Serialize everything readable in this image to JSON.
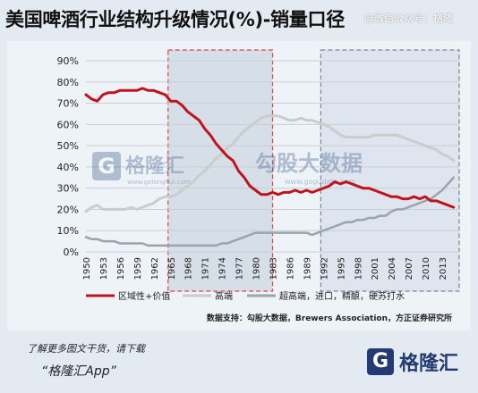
{
  "header": {
    "title": "美国啤酒行业结构升级情况(%)-销量口径",
    "watermark": "@微信公众号：格隆"
  },
  "brand": {
    "wm_left_glyph": "G",
    "wm_left_name": "格隆汇",
    "wm_left_url": "www.gelonghui.com",
    "wm_right_name": "勾股大数据",
    "wm_right_url": "www.gogudata.com"
  },
  "legend": {
    "s1": "区域性+价值",
    "s2": "高端",
    "s3": "超高端，进口，精酿，硬苏打水"
  },
  "source": "数据支持：勾股大数据，Brewers Association，方正证券研究所",
  "promo": {
    "line1": "了解更多图文干货，请下载",
    "line2": "“格隆汇App”",
    "logo_glyph": "G",
    "logo_name": "格隆汇"
  },
  "colors": {
    "s1": "#c0141d",
    "s2": "#cccccc",
    "s3": "#9aa4ad",
    "grid": "#c6cfd8",
    "band": "#cdd8e3",
    "bandBorder1": "#e0453f",
    "bandBorder2": "#7a8796"
  },
  "chart_data": {
    "type": "line",
    "title": "美国啤酒行业结构升级情况(%)-销量口径",
    "ylim": [
      0,
      90
    ],
    "yticks": [
      0,
      10,
      20,
      30,
      40,
      50,
      60,
      70,
      80,
      90
    ],
    "ytick_labels": [
      "0%",
      "10%",
      "20%",
      "30%",
      "40%",
      "50%",
      "60%",
      "70%",
      "80%",
      "90%"
    ],
    "xlim": [
      1950,
      2016
    ],
    "xticks": [
      1950,
      1953,
      1956,
      1959,
      1962,
      1965,
      1968,
      1971,
      1974,
      1977,
      1980,
      1983,
      1986,
      1989,
      1992,
      1995,
      1998,
      2001,
      2004,
      2007,
      2010,
      2013
    ],
    "grid": true,
    "highlight_ranges": [
      [
        1965,
        1983
      ],
      [
        1992,
        2016
      ]
    ],
    "legend_position": "bottom",
    "series": [
      {
        "name": "区域性+价值",
        "x": [
          1950,
          1951,
          1952,
          1953,
          1954,
          1955,
          1956,
          1957,
          1958,
          1959,
          1960,
          1961,
          1962,
          1963,
          1964,
          1965,
          1966,
          1967,
          1968,
          1969,
          1970,
          1971,
          1972,
          1973,
          1974,
          1975,
          1976,
          1977,
          1978,
          1979,
          1980,
          1981,
          1982,
          1983,
          1984,
          1985,
          1986,
          1987,
          1988,
          1989,
          1990,
          1991,
          1992,
          1993,
          1994,
          1995,
          1996,
          1997,
          1998,
          1999,
          2000,
          2001,
          2002,
          2003,
          2004,
          2005,
          2006,
          2007,
          2008,
          2009,
          2010,
          2011,
          2012,
          2013,
          2014,
          2015
        ],
        "values": [
          74,
          72,
          71,
          74,
          75,
          75,
          76,
          76,
          76,
          76,
          77,
          76,
          76,
          75,
          74,
          71,
          71,
          69,
          66,
          64,
          62,
          58,
          55,
          51,
          48,
          45,
          43,
          38,
          35,
          31,
          29,
          27,
          27,
          28,
          27,
          28,
          28,
          29,
          28,
          29,
          28,
          29,
          30,
          31,
          33,
          32,
          33,
          32,
          31,
          30,
          30,
          29,
          28,
          27,
          26,
          26,
          25,
          25,
          26,
          25,
          26,
          24,
          24,
          23,
          22,
          21
        ]
      },
      {
        "name": "高端",
        "x": [
          1950,
          1951,
          1952,
          1953,
          1954,
          1955,
          1956,
          1957,
          1958,
          1959,
          1960,
          1961,
          1962,
          1963,
          1964,
          1965,
          1966,
          1967,
          1968,
          1969,
          1970,
          1971,
          1972,
          1973,
          1974,
          1975,
          1976,
          1977,
          1978,
          1979,
          1980,
          1981,
          1982,
          1983,
          1984,
          1985,
          1986,
          1987,
          1988,
          1989,
          1990,
          1991,
          1992,
          1993,
          1994,
          1995,
          1996,
          1997,
          1998,
          1999,
          2000,
          2001,
          2002,
          2003,
          2004,
          2005,
          2006,
          2007,
          2008,
          2009,
          2010,
          2011,
          2012,
          2013,
          2014,
          2015
        ],
        "values": [
          19,
          21,
          22,
          20,
          20,
          20,
          20,
          20,
          21,
          20,
          21,
          22,
          23,
          25,
          26,
          26,
          27,
          29,
          31,
          33,
          36,
          38,
          41,
          44,
          46,
          49,
          51,
          54,
          57,
          59,
          61,
          63,
          64,
          64,
          64,
          63,
          62,
          62,
          63,
          62,
          62,
          61,
          60,
          59,
          57,
          55,
          54,
          54,
          54,
          54,
          54,
          55,
          55,
          55,
          55,
          55,
          54,
          53,
          52,
          51,
          50,
          49,
          48,
          46,
          45,
          43
        ]
      },
      {
        "name": "超高端，进口，精酿，硬苏打水",
        "x": [
          1950,
          1951,
          1952,
          1953,
          1954,
          1955,
          1956,
          1957,
          1958,
          1959,
          1960,
          1961,
          1962,
          1963,
          1964,
          1965,
          1966,
          1967,
          1968,
          1969,
          1970,
          1971,
          1972,
          1973,
          1974,
          1975,
          1976,
          1977,
          1978,
          1979,
          1980,
          1981,
          1982,
          1983,
          1984,
          1985,
          1986,
          1987,
          1988,
          1989,
          1990,
          1991,
          1992,
          1993,
          1994,
          1995,
          1996,
          1997,
          1998,
          1999,
          2000,
          2001,
          2002,
          2003,
          2004,
          2005,
          2006,
          2007,
          2008,
          2009,
          2010,
          2011,
          2012,
          2013,
          2014,
          2015
        ],
        "values": [
          7,
          6,
          6,
          5,
          5,
          5,
          4,
          4,
          4,
          4,
          4,
          3,
          3,
          3,
          3,
          3,
          3,
          3,
          3,
          3,
          3,
          3,
          3,
          3,
          4,
          4,
          5,
          6,
          7,
          8,
          9,
          9,
          9,
          9,
          9,
          9,
          9,
          9,
          9,
          9,
          8,
          9,
          10,
          11,
          12,
          13,
          14,
          14,
          15,
          15,
          16,
          16,
          17,
          17,
          19,
          20,
          20,
          21,
          22,
          23,
          24,
          25,
          27,
          29,
          32,
          35
        ]
      }
    ]
  }
}
